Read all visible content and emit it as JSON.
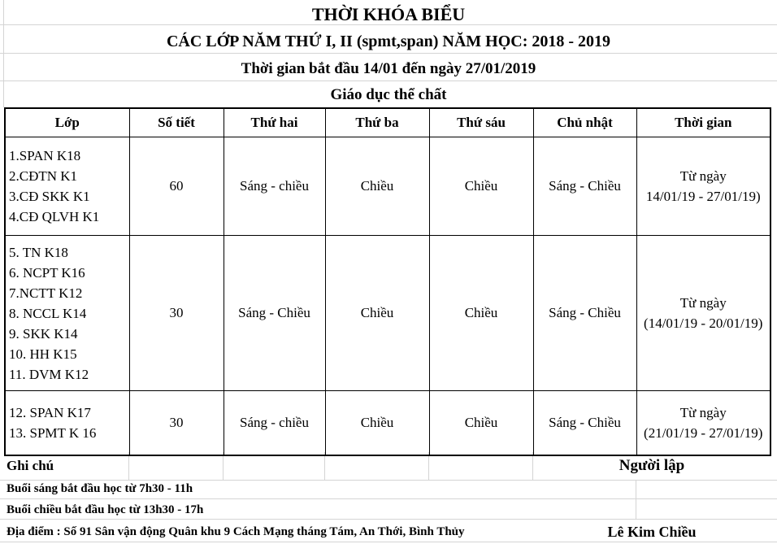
{
  "title": "THỜI KHÓA BIỂU",
  "subtitle": "CÁC LỚP NĂM THỨ I, II (spmt,span) NĂM HỌC: 2018 - 2019",
  "period": "Thời gian bắt đầu 14/01 đến ngày 27/01/2019",
  "subject": "Giáo dục thể chất",
  "headers": [
    "Lớp",
    "Số tiết",
    "Thứ hai",
    "Thứ ba",
    "Thứ sáu",
    "Chủ nhật",
    "Thời gian"
  ],
  "rows": [
    {
      "classes": [
        " 1.SPAN K18",
        "2.CĐTN K1",
        "3.CĐ SKK K1",
        "4.CĐ QLVH K1"
      ],
      "periods": "60",
      "mon": "Sáng - chiều",
      "tue": "Chiều",
      "fri": "Chiều",
      "sun": "Sáng - Chiều",
      "time1": "Từ ngày",
      "time2": "14/01/19  - 27/01/19)"
    },
    {
      "classes": [
        "5. TN K18",
        "6. NCPT K16",
        "7.NCTT K12",
        "8. NCCL K14",
        "9. SKK K14",
        "10. HH K15",
        "11. DVM K12"
      ],
      "periods": "30",
      "mon": "Sáng - Chiều",
      "tue": "Chiều",
      "fri": "Chiều",
      "sun": "Sáng - Chiều",
      "time1": "Từ ngày",
      "time2": "(14/01/19 - 20/01/19)"
    },
    {
      "classes": [
        "12. SPAN K17",
        "13. SPMT K 16"
      ],
      "periods": "30",
      "mon": "Sáng - chiều",
      "tue": "Chiều",
      "fri": "Chiều",
      "sun": "Sáng - Chiều",
      "time1": "Từ ngày",
      "time2": "(21/01/19 - 27/01/19)"
    }
  ],
  "notes_label": "Ghi chú",
  "creator_label": "Người lập",
  "morning": "Buổi sáng bắt đầu học từ 7h30 - 11h",
  "afternoon": "Buổi chiều bắt đầu học từ 13h30 - 17h",
  "location": "Địa điểm : Số 91 Sân vận động Quân khu 9 Cách Mạng tháng Tám, An Thới, Bình Thủy",
  "creator": "Lê Kim Chiều"
}
